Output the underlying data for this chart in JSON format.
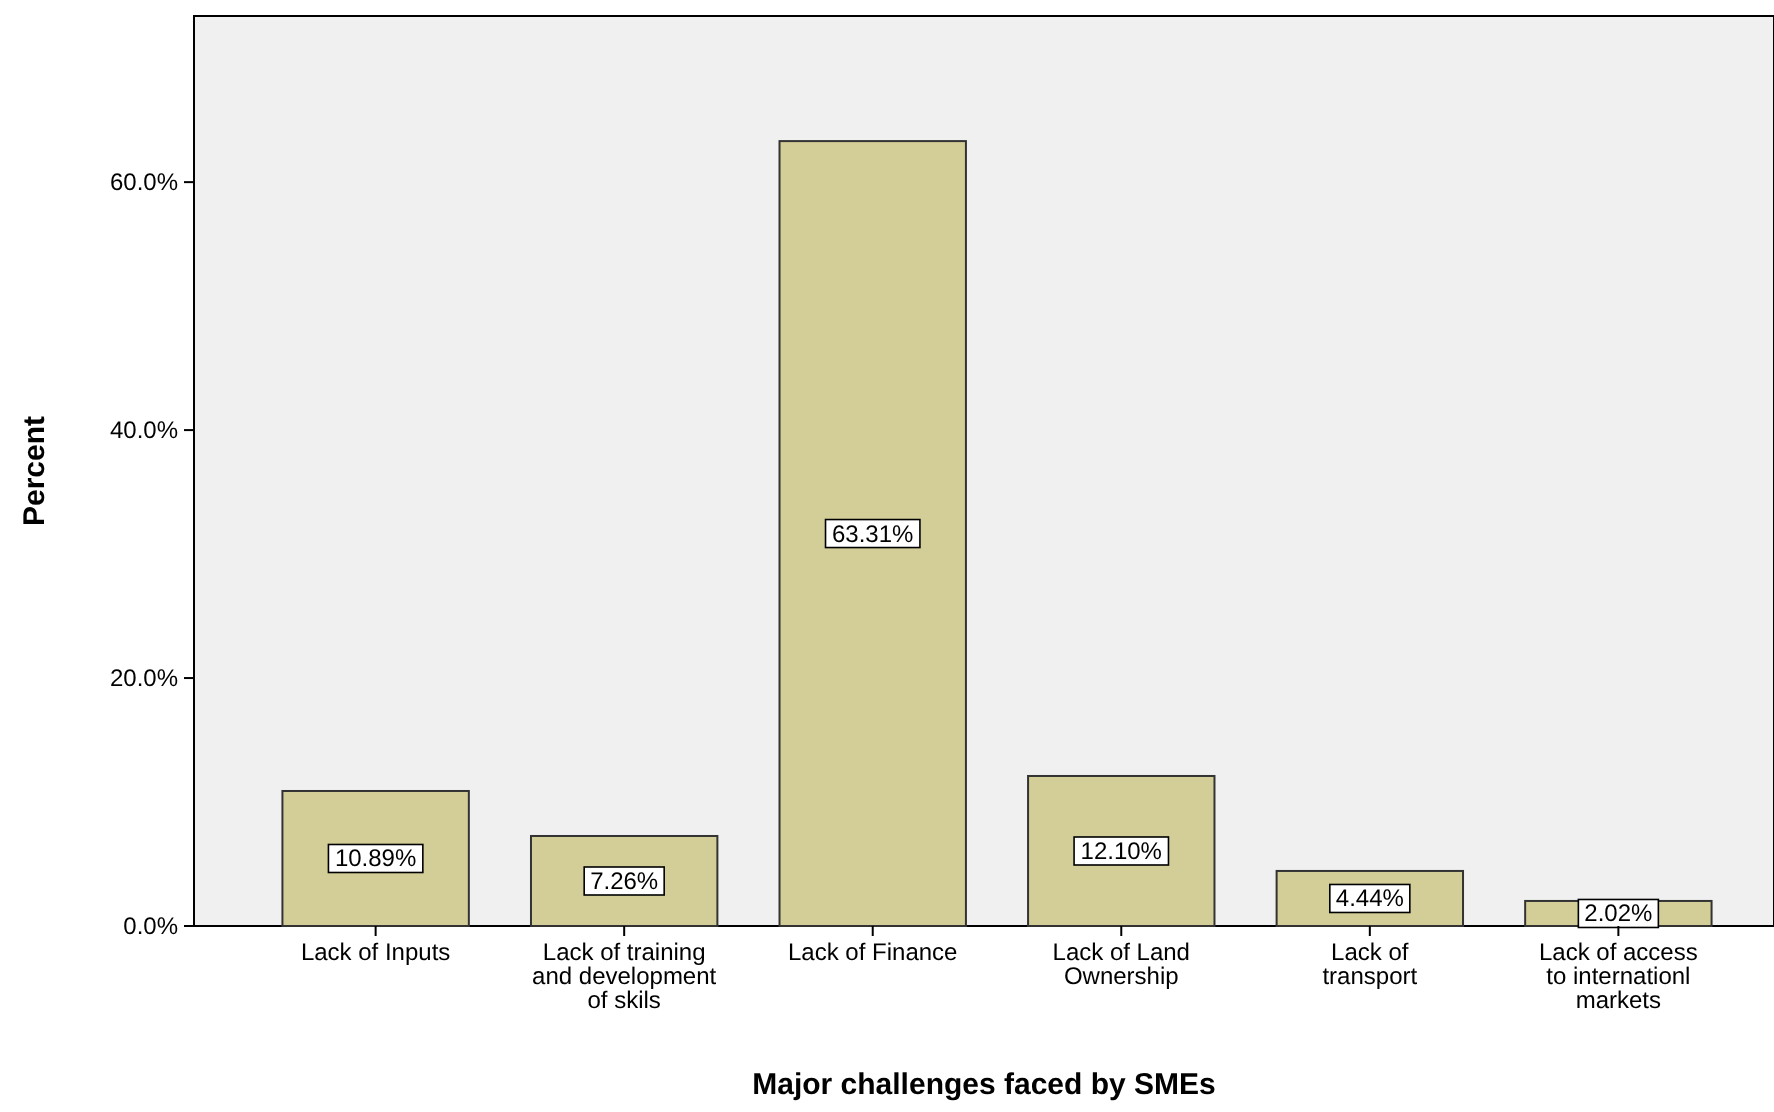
{
  "chart_data": {
    "type": "bar",
    "xlabel": "Major challenges faced by SMEs",
    "ylabel": "Percent",
    "categories": [
      "Lack of Inputs",
      "Lack of training and development of skils",
      "Lack of Finance",
      "Lack of Land Ownership",
      "Lack of transport",
      "Lack of access to internationl markets"
    ],
    "values": [
      10.89,
      7.26,
      63.31,
      12.1,
      4.44,
      2.02
    ],
    "value_labels": [
      "10.89%",
      "7.26%",
      "63.31%",
      "12.10%",
      "4.44%",
      "2.02%"
    ],
    "color": "#d3ce97",
    "ylim": [
      0,
      73.4
    ],
    "yticks": [
      {
        "value": 0,
        "label": "0.0%"
      },
      {
        "value": 20,
        "label": "20.0%"
      },
      {
        "value": 40,
        "label": "40.0%"
      },
      {
        "value": 60,
        "label": "60.0%"
      }
    ],
    "grid": false
  }
}
